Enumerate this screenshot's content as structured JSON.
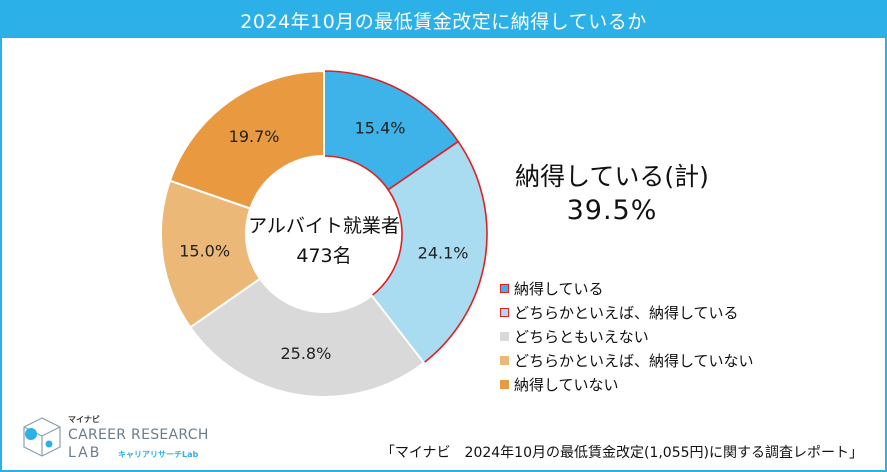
{
  "header": {
    "title": "2024年10月の最低賃金改定に納得しているか"
  },
  "chart_data": {
    "type": "pie",
    "title": "2024年10月の最低賃金改定に納得しているか",
    "center_label_line1": "アルバイト就業者",
    "center_label_line2": "473名",
    "categories": [
      "納得している",
      "どちらかといえば、納得している",
      "どちらともいえない",
      "どちらかといえば、納得していない",
      "納得していない"
    ],
    "values": [
      15.4,
      24.1,
      25.8,
      15.0,
      19.7
    ],
    "value_labels": [
      "15.4%",
      "24.1%",
      "25.8%",
      "15.0%",
      "19.7%"
    ],
    "colors": [
      "#3db3ea",
      "#a9dbf1",
      "#d9d9d9",
      "#ecb877",
      "#e99a40"
    ],
    "highlight_color": "#e02020",
    "highlighted": [
      true,
      true,
      false,
      false,
      false
    ]
  },
  "summary": {
    "label": "納得している(計)",
    "value": "39.5%"
  },
  "logo": {
    "top": "マイナビ",
    "line1": "CAREER RESEARCH",
    "line2": "LAB",
    "line2_sub": "キャリアリサーチLab"
  },
  "source": "「マイナビ　2024年10月の最低賃金改定(1,055円)に関する調査レポート」"
}
